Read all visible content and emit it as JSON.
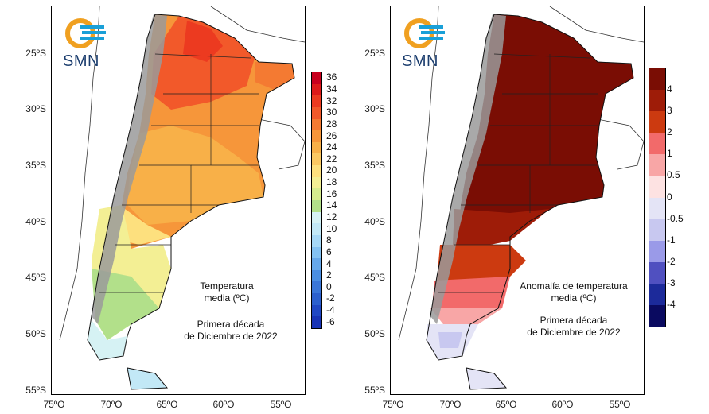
{
  "logo_text": "SMN",
  "lat_labels": [
    "25ºS",
    "30ºS",
    "35ºS",
    "40ºS",
    "45ºS",
    "50ºS",
    "55ºS"
  ],
  "lon_labels": [
    "75ºO",
    "70ºO",
    "65ºO",
    "60ºO",
    "55ºO"
  ],
  "left": {
    "title_line1": "Temperatura",
    "title_line2": "media (ºC)",
    "period_line1": "Primera década",
    "period_line2": "de Diciembre de 2022",
    "legend_labels": [
      "36",
      "34",
      "32",
      "30",
      "28",
      "26",
      "24",
      "22",
      "20",
      "18",
      "16",
      "14",
      "12",
      "10",
      "8",
      "6",
      "4",
      "2",
      "0",
      "-2",
      "-4",
      "-6"
    ],
    "legend_colors": [
      "#c8001e",
      "#dd1a1a",
      "#ec3a20",
      "#f2592a",
      "#f47a32",
      "#f6963a",
      "#f8b048",
      "#fbc862",
      "#fde07e",
      "#f3ef94",
      "#d6ec8e",
      "#b2e08a",
      "#d6f2f4",
      "#c2e8f6",
      "#a6d8f6",
      "#84c2f2",
      "#66a8ea",
      "#4a8ee2",
      "#3a76d8",
      "#2c60ce",
      "#2048c4",
      "#1834b6"
    ]
  },
  "right": {
    "title_line1": "Anomalía de temperatura",
    "title_line2": "media (ºC)",
    "period_line1": "Primera década",
    "period_line2": "de Diciembre de 2022",
    "legend_labels": [
      "4",
      "3",
      "2",
      "1",
      "0.5",
      "0",
      "-0.5",
      "-1",
      "-2",
      "-3",
      "-4"
    ],
    "legend_colors": [
      "#7a0d04",
      "#9e1c08",
      "#cc3a10",
      "#f26a6a",
      "#f8a6a6",
      "#fde2e2",
      "#e4e4f6",
      "#c8c8f0",
      "#9a9ae8",
      "#5050c0",
      "#1c2a9a",
      "#0a0a60"
    ]
  }
}
